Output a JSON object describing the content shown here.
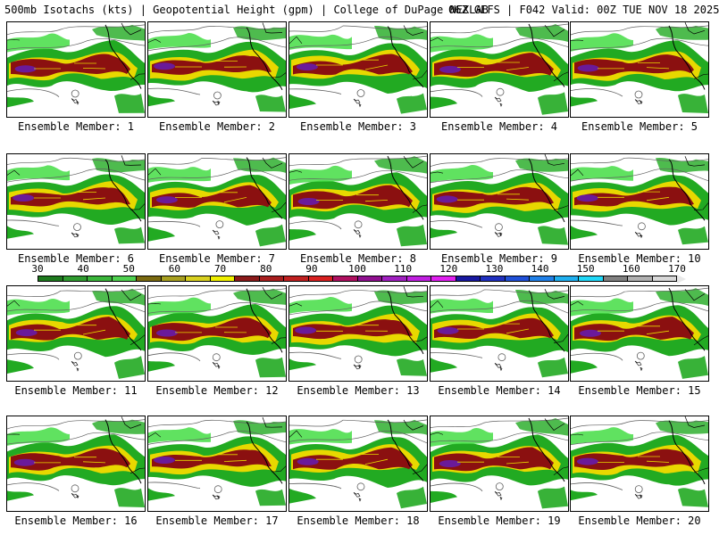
{
  "header": {
    "left": "500mb Isotachs (kts) | Geopotential Height (gpm) | College of DuPage NEXLAB",
    "right": "06Z GEFS | F042 Valid: 00Z TUE NOV 18 2025"
  },
  "panels": [
    {
      "label": "Ensemble Member: 1"
    },
    {
      "label": "Ensemble Member: 2"
    },
    {
      "label": "Ensemble Member: 3"
    },
    {
      "label": "Ensemble Member: 4"
    },
    {
      "label": "Ensemble Member: 5"
    },
    {
      "label": "Ensemble Member: 6"
    },
    {
      "label": "Ensemble Member: 7"
    },
    {
      "label": "Ensemble Member: 8"
    },
    {
      "label": "Ensemble Member: 9"
    },
    {
      "label": "Ensemble Member: 10"
    },
    {
      "label": "Ensemble Member: 11"
    },
    {
      "label": "Ensemble Member: 12"
    },
    {
      "label": "Ensemble Member: 13"
    },
    {
      "label": "Ensemble Member: 14"
    },
    {
      "label": "Ensemble Member: 15"
    },
    {
      "label": "Ensemble Member: 16"
    },
    {
      "label": "Ensemble Member: 17"
    },
    {
      "label": "Ensemble Member: 18"
    },
    {
      "label": "Ensemble Member: 19"
    },
    {
      "label": "Ensemble Member: 20"
    }
  ],
  "colorbar": {
    "labels": [
      "30",
      "40",
      "50",
      "60",
      "70",
      "80",
      "90",
      "100",
      "110",
      "120",
      "130",
      "140",
      "150",
      "160",
      "170"
    ],
    "colors": [
      "#1e7a1e",
      "#2f9b2f",
      "#3ab53a",
      "#4fd04f",
      "#7a6a10",
      "#a8a020",
      "#d8d020",
      "#f0f000",
      "#8b1a1a",
      "#a81e1e",
      "#c02020",
      "#d82020",
      "#b01060",
      "#901090",
      "#a020c0",
      "#c020e0",
      "#e020f0",
      "#1818a0",
      "#2030c0",
      "#2050d8",
      "#2080e8",
      "#20b0f0",
      "#20d8f8",
      "#808080",
      "#b0b0b0",
      "#d8d8d8"
    ]
  },
  "map_colors": {
    "green": "#22aa22",
    "light_green": "#44dd44",
    "dark_red": "#8b1010",
    "yellow": "#e8d800",
    "purple": "#6a1a9a",
    "contour": "#606060",
    "coast": "#000000"
  }
}
